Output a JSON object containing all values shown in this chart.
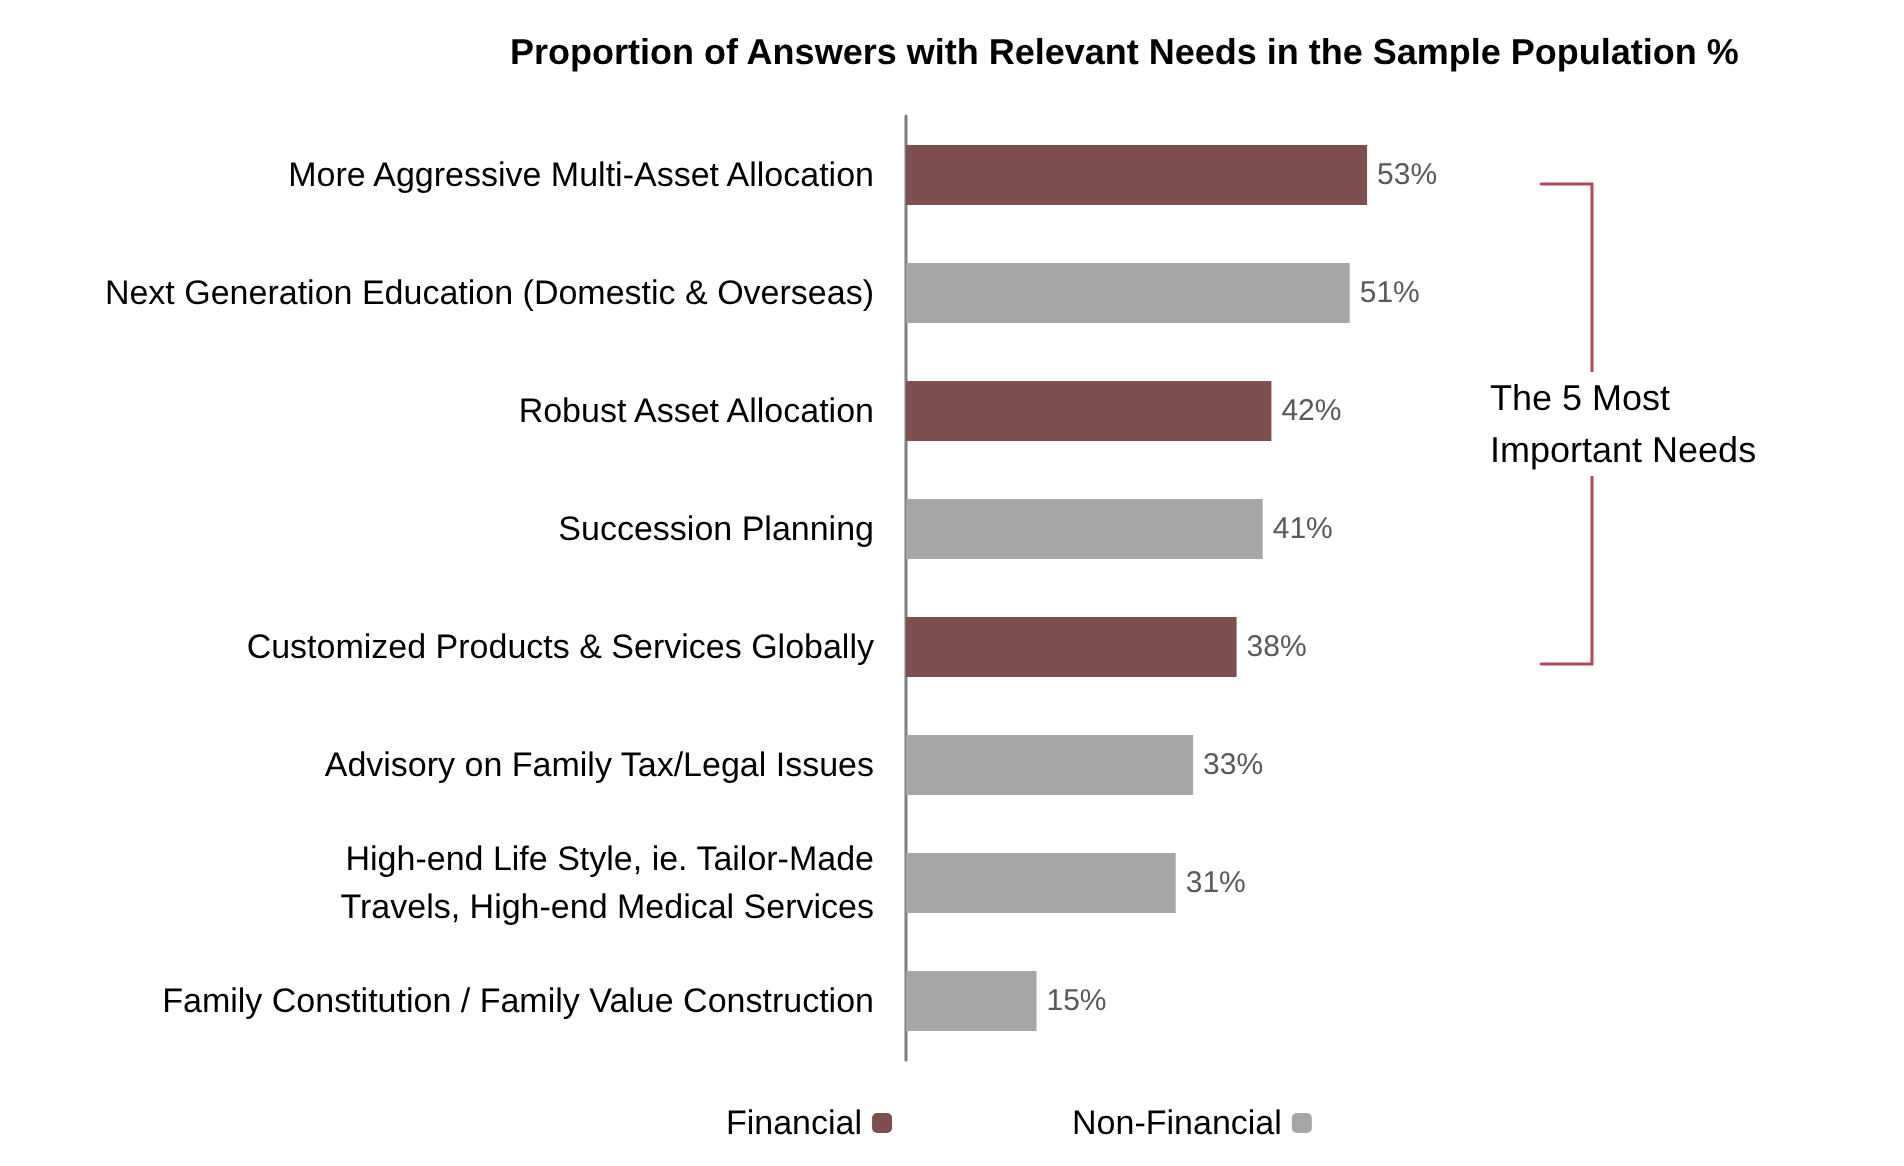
{
  "chart_data": {
    "type": "bar",
    "orientation": "horizontal",
    "stacked": true,
    "title": "Proportion of Answers with Relevant Needs in the Sample Population %",
    "categories": [
      "More Aggressive Multi-Asset Allocation",
      "Next Generation Education (Domestic & Overseas)",
      "Robust Asset Allocation",
      "Succession Planning",
      "Customized Products & Services Globally",
      "Advisory on Family Tax/Legal Issues",
      "High-end Life Style, ie. Tailor-Made\nTravels, High-end Medical Services",
      "Family Constitution / Family Value Construction"
    ],
    "series": [
      {
        "name": "Financial",
        "color": "#7f4f4f",
        "values": [
          53,
          null,
          42,
          null,
          38,
          null,
          null,
          null
        ],
        "value_labels": [
          "53%",
          null,
          "42%",
          null,
          "38%",
          null,
          null,
          null
        ]
      },
      {
        "name": "Non-Financial",
        "color": "#a6a6a6",
        "values": [
          null,
          51,
          null,
          41,
          null,
          33,
          31,
          15
        ],
        "value_labels": [
          null,
          "51%",
          null,
          "41%",
          null,
          "33%",
          "31%",
          "15%"
        ]
      }
    ],
    "annotations": [
      "The 5 Most Important Needs"
    ],
    "legend": "bottom",
    "tick_labels": "y"
  }
}
